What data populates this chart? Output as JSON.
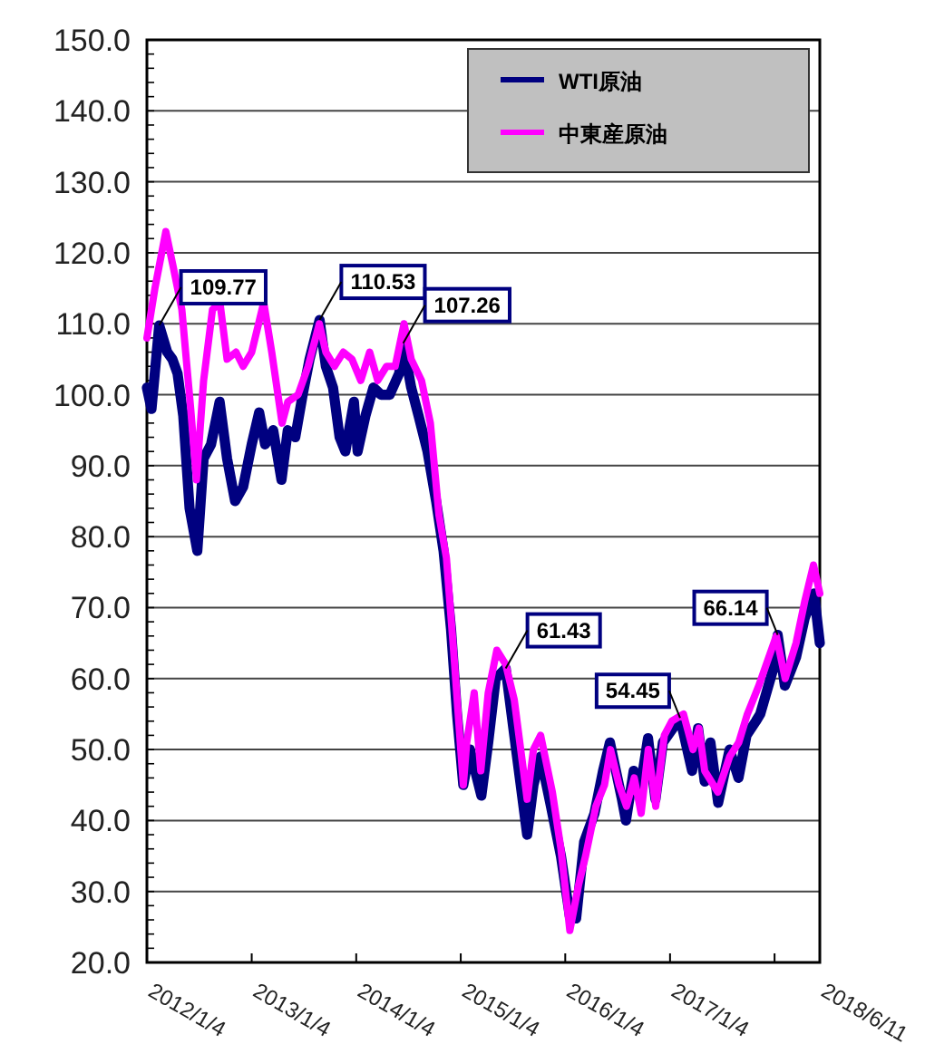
{
  "chart_data": {
    "type": "line",
    "xlim": [
      "2012-01-04",
      "2018-06-11"
    ],
    "ylim": [
      20,
      150
    ],
    "xticks": [
      {
        "value": "2012-01-04",
        "label": "2012/1/4"
      },
      {
        "value": "2013-01-04",
        "label": "2013/1/4"
      },
      {
        "value": "2014-01-04",
        "label": "2014/1/4"
      },
      {
        "value": "2015-01-04",
        "label": "2015/1/4"
      },
      {
        "value": "2016-01-04",
        "label": "2016/1/4"
      },
      {
        "value": "2017-01-04",
        "label": "2017/1/4"
      },
      {
        "value": "2018-01-04",
        "label": null
      },
      {
        "value": "2018-06-11",
        "label": "2018/6/11"
      }
    ],
    "yticks": [
      {
        "value": 20,
        "label": "20.0"
      },
      {
        "value": 30,
        "label": "30.0"
      },
      {
        "value": 40,
        "label": "40.0"
      },
      {
        "value": 50,
        "label": "50.0"
      },
      {
        "value": 60,
        "label": "60.0"
      },
      {
        "value": 70,
        "label": "70.0"
      },
      {
        "value": 80,
        "label": "80.0"
      },
      {
        "value": 90,
        "label": "90.0"
      },
      {
        "value": 100,
        "label": "100.0"
      },
      {
        "value": 110,
        "label": "110.0"
      },
      {
        "value": 120,
        "label": "120.0"
      },
      {
        "value": 130,
        "label": "130.0"
      },
      {
        "value": 140,
        "label": "140.0"
      },
      {
        "value": 150,
        "label": "150.0"
      }
    ],
    "grid": "y",
    "legend": "top right",
    "marker": "none",
    "line_style": "solid",
    "series": [
      {
        "name": "WTI原油",
        "color": "#000080",
        "x": [
          "2012-01-04",
          "2012-01-20",
          "2012-02-16",
          "2012-03-15",
          "2012-04-02",
          "2012-04-20",
          "2012-05-10",
          "2012-06-01",
          "2012-06-28",
          "2012-07-20",
          "2012-08-15",
          "2012-09-14",
          "2012-10-10",
          "2012-11-07",
          "2012-12-05",
          "2013-01-04",
          "2013-01-30",
          "2013-02-20",
          "2013-03-20",
          "2013-04-18",
          "2013-05-10",
          "2013-06-05",
          "2013-07-01",
          "2013-07-25",
          "2013-08-29",
          "2013-09-20",
          "2013-10-15",
          "2013-11-07",
          "2013-11-27",
          "2013-12-27",
          "2014-01-09",
          "2014-02-05",
          "2014-03-05",
          "2014-04-01",
          "2014-05-01",
          "2014-06-03",
          "2014-06-17",
          "2014-07-15",
          "2014-08-10",
          "2014-09-10",
          "2014-10-10",
          "2014-11-05",
          "2014-12-01",
          "2014-12-22",
          "2015-01-13",
          "2015-02-05",
          "2015-03-17",
          "2015-04-10",
          "2015-05-06",
          "2015-06-10",
          "2015-07-10",
          "2015-08-24",
          "2015-09-15",
          "2015-10-10",
          "2015-11-15",
          "2015-12-20",
          "2016-01-20",
          "2016-02-11",
          "2016-03-10",
          "2016-04-15",
          "2016-05-15",
          "2016-06-08",
          "2016-07-20",
          "2016-08-03",
          "2016-08-30",
          "2016-09-20",
          "2016-10-19",
          "2016-11-14",
          "2016-12-10",
          "2017-02-08",
          "2017-03-22",
          "2017-04-12",
          "2017-05-05",
          "2017-05-25",
          "2017-06-21",
          "2017-07-31",
          "2017-08-31",
          "2017-09-28",
          "2017-10-31",
          "2017-11-15",
          "2018-01-04",
          "2018-01-15",
          "2018-02-09",
          "2018-03-20",
          "2018-04-19",
          "2018-05-22",
          "2018-06-11"
        ],
        "values": [
          101,
          98,
          109.77,
          106,
          105,
          103,
          97,
          84,
          78,
          91,
          93,
          99,
          91,
          85,
          87,
          93,
          97.5,
          93,
          95,
          88,
          95,
          94,
          100,
          105,
          110.53,
          104,
          101,
          94,
          92,
          99,
          92,
          97,
          101,
          100,
          100,
          103,
          107.26,
          101,
          97,
          92,
          85,
          78,
          67,
          55,
          45,
          50,
          43.5,
          51,
          60,
          61.43,
          52,
          38,
          45,
          49,
          42,
          35,
          26.5,
          26.2,
          37,
          41,
          47,
          51,
          43,
          40,
          47,
          44,
          51.6,
          43,
          51,
          54.45,
          47,
          53,
          45.5,
          51,
          42.5,
          50,
          46,
          52,
          54,
          55,
          62,
          66.14,
          59,
          63,
          68.5,
          72,
          65
        ]
      },
      {
        "name": "中東産原油",
        "color": "#ff00ff",
        "x": [
          "2012-01-04",
          "2012-02-01",
          "2012-03-10",
          "2012-04-05",
          "2012-05-05",
          "2012-06-05",
          "2012-06-25",
          "2012-07-20",
          "2012-08-20",
          "2012-09-15",
          "2012-10-10",
          "2012-11-10",
          "2012-12-05",
          "2013-01-04",
          "2013-02-15",
          "2013-03-15",
          "2013-04-20",
          "2013-05-10",
          "2013-06-15",
          "2013-07-20",
          "2013-08-28",
          "2013-09-20",
          "2013-10-20",
          "2013-11-20",
          "2013-12-20",
          "2014-01-20",
          "2014-02-20",
          "2014-03-20",
          "2014-04-20",
          "2014-05-20",
          "2014-06-20",
          "2014-07-15",
          "2014-08-20",
          "2014-09-20",
          "2014-10-20",
          "2014-11-15",
          "2014-12-10",
          "2015-01-13",
          "2015-01-25",
          "2015-02-20",
          "2015-03-15",
          "2015-04-10",
          "2015-05-10",
          "2015-06-10",
          "2015-07-10",
          "2015-08-24",
          "2015-09-15",
          "2015-10-10",
          "2015-11-20",
          "2015-12-20",
          "2016-01-20",
          "2016-02-20",
          "2016-03-15",
          "2016-04-20",
          "2016-05-20",
          "2016-06-10",
          "2016-07-10",
          "2016-08-05",
          "2016-09-01",
          "2016-09-25",
          "2016-10-20",
          "2016-11-15",
          "2016-12-15",
          "2017-01-10",
          "2017-02-20",
          "2017-03-25",
          "2017-04-15",
          "2017-05-05",
          "2017-06-20",
          "2017-07-31",
          "2017-09-01",
          "2017-10-01",
          "2017-11-10",
          "2018-01-10",
          "2018-02-10",
          "2018-03-20",
          "2018-04-20",
          "2018-05-20",
          "2018-06-11"
        ],
        "values": [
          108,
          115,
          123,
          118,
          112,
          98,
          88,
          102,
          112,
          113,
          105,
          106,
          104,
          106,
          113,
          106,
          96,
          99,
          100,
          104,
          110,
          106,
          104,
          106,
          105,
          102,
          106,
          102,
          104,
          104,
          110,
          105,
          102,
          96,
          83,
          77,
          64,
          45,
          51,
          58,
          47,
          58,
          64,
          62,
          57,
          43,
          50,
          52,
          44,
          36,
          24.5,
          31,
          35,
          42,
          45,
          50,
          45,
          42,
          46,
          41,
          50,
          42,
          52,
          54,
          55,
          50,
          53,
          47,
          44,
          49,
          51,
          55,
          59,
          66,
          60,
          65,
          71,
          76,
          72
        ]
      }
    ],
    "annotations": [
      {
        "text": "109.77",
        "x": "2012-02-16",
        "y": 109.77
      },
      {
        "text": "110.53",
        "x": "2013-08-29",
        "y": 110.53
      },
      {
        "text": "107.26",
        "x": "2014-06-17",
        "y": 107.26
      },
      {
        "text": "61.43",
        "x": "2015-06-10",
        "y": 61.43
      },
      {
        "text": "54.45",
        "x": "2017-02-08",
        "y": 54.45
      },
      {
        "text": "66.14",
        "x": "2018-01-15",
        "y": 66.14
      }
    ]
  }
}
